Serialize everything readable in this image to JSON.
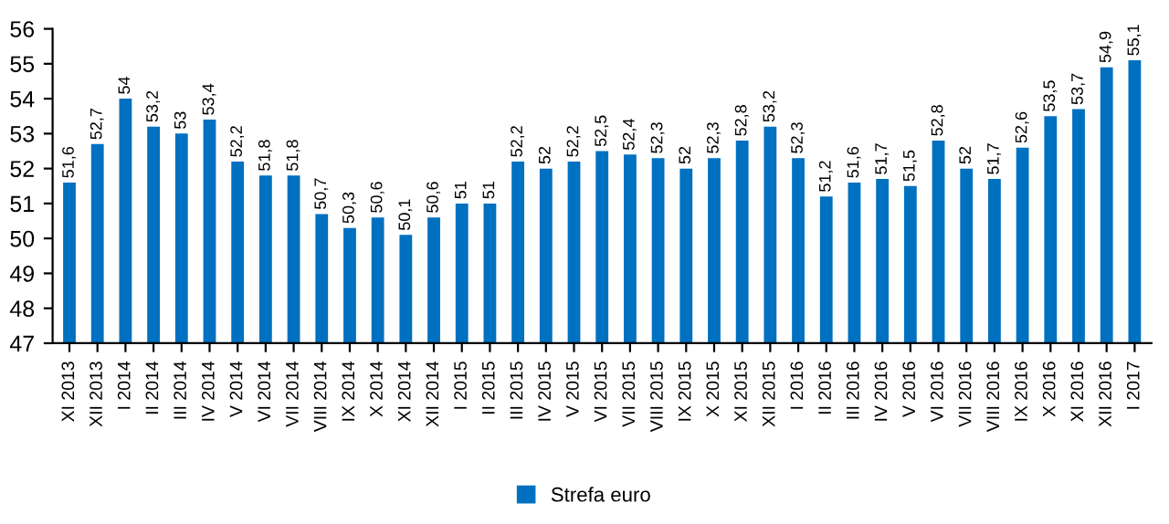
{
  "chart_data": {
    "type": "bar",
    "categories": [
      "XI 2013",
      "XII 2013",
      "I 2014",
      "II 2014",
      "III 2014",
      "IV 2014",
      "V 2014",
      "VI 2014",
      "VII 2014",
      "VIII 2014",
      "IX 2014",
      "X 2014",
      "XI 2014",
      "XII 2014",
      "I 2015",
      "II 2015",
      "III 2015",
      "IV 2015",
      "V 2015",
      "VI 2015",
      "VII 2015",
      "VIII 2015",
      "IX 2015",
      "X 2015",
      "XI 2015",
      "XII 2015",
      "I 2016",
      "II 2016",
      "III 2016",
      "IV 2016",
      "V 2016",
      "VI 2016",
      "VII 2016",
      "VIII 2016",
      "IX 2016",
      "X 2016",
      "XI 2016",
      "XII 2016",
      "I 2017"
    ],
    "series": [
      {
        "name": "Strefa euro",
        "color": "#0070c0",
        "values": [
          51.6,
          52.7,
          54,
          53.2,
          53,
          53.4,
          52.2,
          51.8,
          51.8,
          50.7,
          50.3,
          50.6,
          50.1,
          50.6,
          51,
          51,
          52.2,
          52,
          52.2,
          52.5,
          52.4,
          52.3,
          52,
          52.3,
          52.8,
          53.2,
          52.3,
          51.2,
          51.6,
          51.7,
          51.5,
          52.8,
          52,
          51.7,
          52.6,
          53.5,
          53.7,
          54.9,
          55.1
        ],
        "value_labels": [
          "51,6",
          "52,7",
          "54",
          "53,2",
          "53",
          "53,4",
          "52,2",
          "51,8",
          "51,8",
          "50,7",
          "50,3",
          "50,6",
          "50,1",
          "50,6",
          "51",
          "51",
          "52,2",
          "52",
          "52,2",
          "52,5",
          "52,4",
          "52,3",
          "52",
          "52,3",
          "52,8",
          "53,2",
          "52,3",
          "51,2",
          "51,6",
          "51,7",
          "51,5",
          "52,8",
          "52",
          "51,7",
          "52,6",
          "53,5",
          "53,7",
          "54,9",
          "55,1"
        ]
      }
    ],
    "ylim": [
      47,
      56
    ],
    "yticks": [
      47,
      48,
      49,
      50,
      51,
      52,
      53,
      54,
      55,
      56
    ],
    "grid": false,
    "legend": "bottom"
  }
}
